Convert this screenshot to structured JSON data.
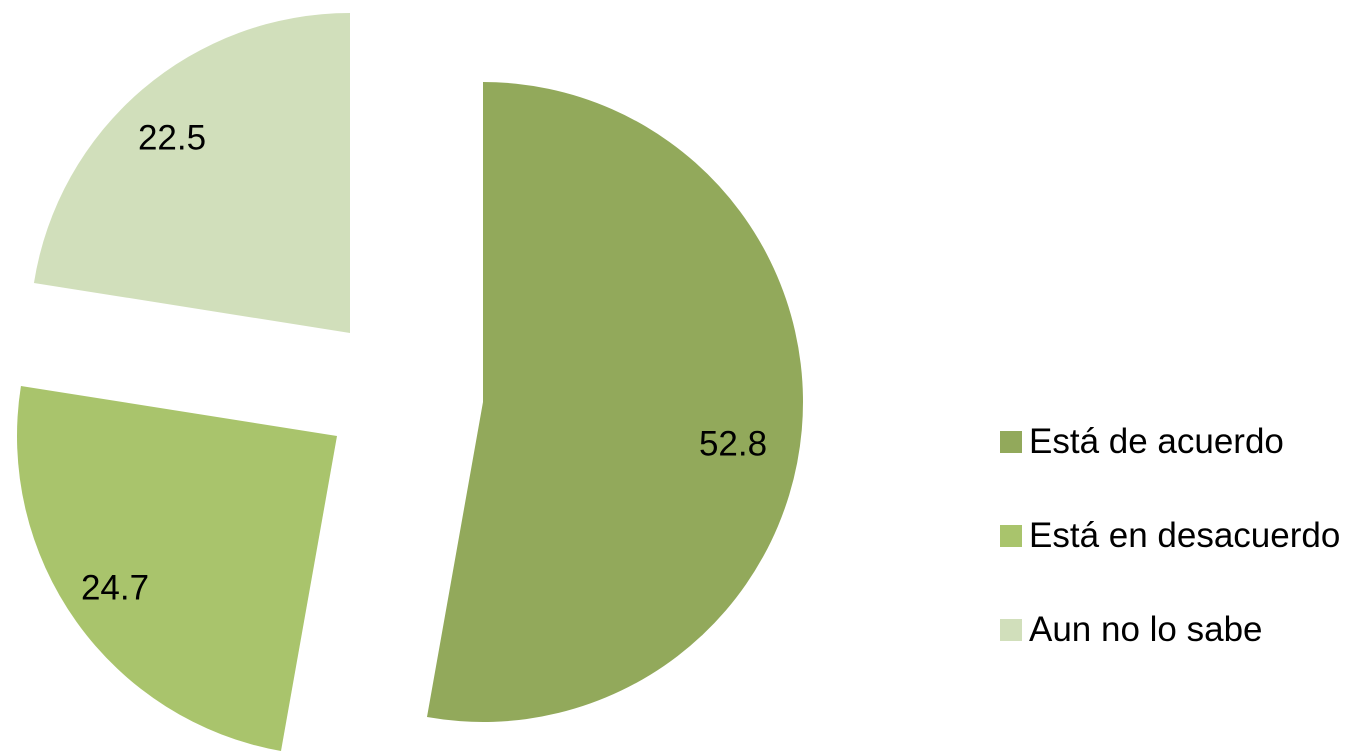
{
  "chart_data": {
    "type": "pie",
    "title": "",
    "slices": [
      {
        "label": "Está de acuerdo",
        "value": 52.8,
        "value_label": "52.8",
        "color": "#92a95b"
      },
      {
        "label": "Está en desacuerdo",
        "value": 24.7,
        "value_label": "24.7",
        "color": "#a9c46c"
      },
      {
        "label": "Aun no lo sabe",
        "value": 22.5,
        "value_label": "22.5",
        "color": "#d1dfbb"
      }
    ],
    "start_angle_deg": 0,
    "direction": "clockwise",
    "exploded": true,
    "legend_position": "right"
  }
}
